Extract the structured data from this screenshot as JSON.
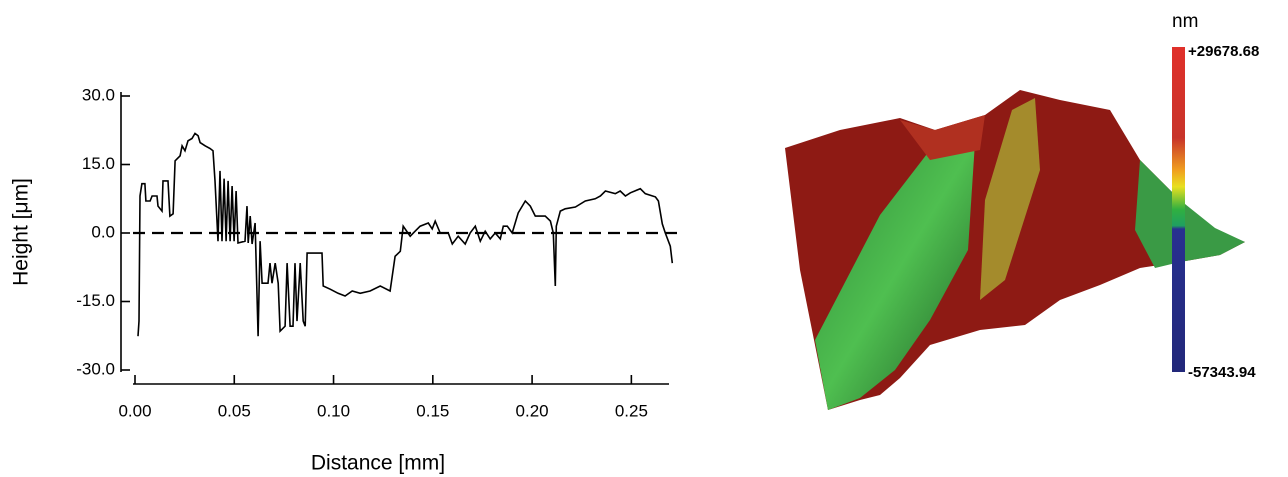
{
  "chart_data": {
    "type": "line",
    "xlabel": "Distance [mm]",
    "ylabel": "Height [μm]",
    "xlim": [
      0,
      0.275
    ],
    "ylim": [
      -30,
      30
    ],
    "xticks": [
      {
        "value": 0,
        "label": "0.00"
      },
      {
        "value": 0.05,
        "label": "0.05"
      },
      {
        "value": 0.1,
        "label": "0.10"
      },
      {
        "value": 0.15,
        "label": "0.15"
      },
      {
        "value": 0.2,
        "label": "0.20"
      },
      {
        "value": 0.25,
        "label": "0.25"
      }
    ],
    "yticks": [
      {
        "value": 30,
        "label": "30.0"
      },
      {
        "value": 15,
        "label": "15.0"
      },
      {
        "value": 0,
        "label": "0.0"
      },
      {
        "value": -15,
        "label": "-15.0"
      },
      {
        "value": -30,
        "label": "-30.0"
      }
    ],
    "color": "#000000",
    "x": [
      0.0015,
      0.002,
      0.0025,
      0.0035,
      0.005,
      0.0055,
      0.0076,
      0.0086,
      0.0111,
      0.0116,
      0.0136,
      0.0141,
      0.0166,
      0.0176,
      0.0192,
      0.0202,
      0.0227,
      0.0237,
      0.0252,
      0.0267,
      0.0287,
      0.0302,
      0.0318,
      0.0328,
      0.0353,
      0.0378,
      0.0393,
      0.0403,
      0.0418,
      0.0428,
      0.0438,
      0.0449,
      0.0459,
      0.0469,
      0.0479,
      0.0489,
      0.0499,
      0.0509,
      0.0519,
      0.0554,
      0.0564,
      0.057,
      0.058,
      0.059,
      0.0605,
      0.062,
      0.063,
      0.064,
      0.067,
      0.068,
      0.069,
      0.0706,
      0.0721,
      0.0731,
      0.0756,
      0.0766,
      0.0781,
      0.0796,
      0.0806,
      0.0816,
      0.0832,
      0.0847,
      0.0857,
      0.0867,
      0.0942,
      0.0948,
      0.0983,
      0.1023,
      0.1058,
      0.1094,
      0.1134,
      0.1184,
      0.1235,
      0.1285,
      0.131,
      0.1336,
      0.1351,
      0.1386,
      0.1411,
      0.1436,
      0.1477,
      0.1497,
      0.1512,
      0.1537,
      0.1578,
      0.1598,
      0.1628,
      0.1663,
      0.1688,
      0.1714,
      0.1739,
      0.1764,
      0.1789,
      0.1814,
      0.184,
      0.1855,
      0.1875,
      0.19,
      0.193,
      0.1966,
      0.1991,
      0.2016,
      0.2066,
      0.2092,
      0.2107,
      0.2117,
      0.2122,
      0.2142,
      0.2167,
      0.2218,
      0.2268,
      0.2318,
      0.2344,
      0.2369,
      0.2419,
      0.2444,
      0.247,
      0.2495,
      0.2545,
      0.257,
      0.2621,
      0.2636,
      0.2656,
      0.2671,
      0.2696,
      0.2706
    ],
    "values": [
      -22.6,
      -19.3,
      8.1,
      10.8,
      10.8,
      7.0,
      7.0,
      8.1,
      8.1,
      5.9,
      4.8,
      11.4,
      11.4,
      3.7,
      4.2,
      15.8,
      16.9,
      19.1,
      18.0,
      20.2,
      20.7,
      21.8,
      21.3,
      19.8,
      19.1,
      18.5,
      18.0,
      11.4,
      -1.8,
      13.6,
      -1.8,
      11.9,
      -1.8,
      11.4,
      -1.8,
      10.3,
      -1.8,
      9.2,
      -2.2,
      -1.8,
      5.9,
      -2.2,
      3.7,
      -2.4,
      2.2,
      -22.6,
      -1.8,
      -11.0,
      -11.0,
      -6.6,
      -11.0,
      -6.6,
      -11.0,
      -21.5,
      -20.4,
      -6.6,
      -20.4,
      -20.4,
      -6.6,
      -19.3,
      -6.6,
      -19.3,
      -20.4,
      -4.4,
      -4.4,
      -11.6,
      -12.3,
      -13.2,
      -13.8,
      -12.7,
      -13.2,
      -12.7,
      -11.6,
      -12.7,
      -5.1,
      -4.0,
      1.5,
      -0.7,
      0.4,
      1.5,
      2.2,
      0.9,
      2.6,
      0.0,
      0.0,
      -2.4,
      -0.7,
      -2.4,
      0.0,
      1.5,
      -1.8,
      0.4,
      -1.3,
      0.0,
      -1.3,
      1.5,
      1.5,
      0.0,
      4.4,
      7.0,
      5.9,
      3.7,
      3.7,
      2.6,
      0.0,
      -11.6,
      1.5,
      4.8,
      5.3,
      5.7,
      7.0,
      7.5,
      8.1,
      9.2,
      8.6,
      9.2,
      8.1,
      8.8,
      9.7,
      8.6,
      7.9,
      7.0,
      2.0,
      0.0,
      -2.9,
      -6.6
    ]
  },
  "surface": {
    "colorbar": {
      "unit": "nm",
      "max": {
        "value": 29678.68,
        "label": "+29678.68"
      },
      "min": -57343.94
    }
  }
}
